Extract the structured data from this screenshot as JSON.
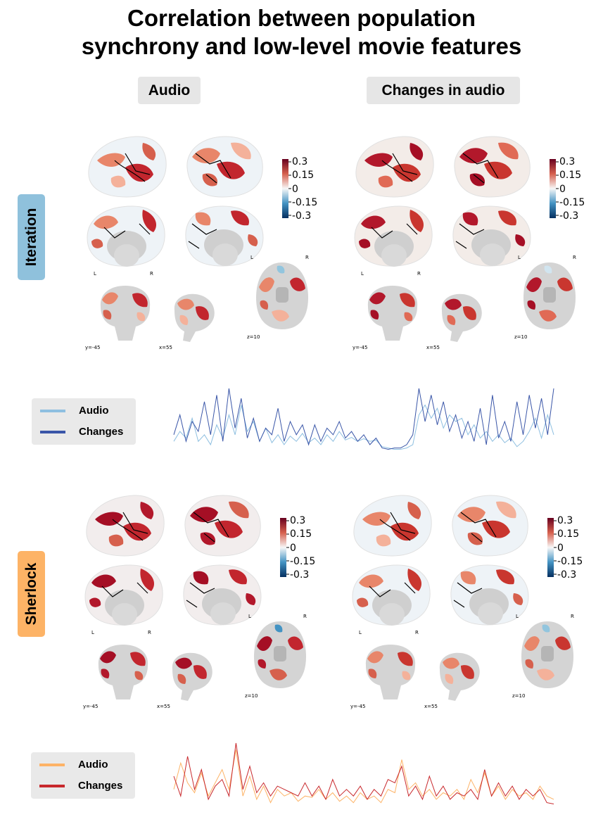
{
  "title_line1": "Correlation between population",
  "title_line2": "synchrony and low-level movie features",
  "columns": [
    "Audio",
    "Changes in audio"
  ],
  "rows": [
    {
      "label": "Iteration",
      "color": "#8fc1dc"
    },
    {
      "label": "Sherlock",
      "color": "#fdb366"
    }
  ],
  "colorbar": {
    "ticks": [
      "0.3",
      "0.15",
      "0",
      "-0.15",
      "-0.3"
    ],
    "colormap": "RdBu_r",
    "range": [
      -0.3,
      0.3
    ]
  },
  "slice_labels": {
    "L": "L",
    "R": "R",
    "coronal": "y=-45",
    "sagittal": "x=55",
    "axial": "z=10"
  },
  "legends": {
    "iteration": [
      {
        "label": "Audio",
        "color": "#8ebfe0"
      },
      {
        "label": "Changes",
        "color": "#3a56a8"
      }
    ],
    "sherlock": [
      {
        "label": "Audio",
        "color": "#fdb366"
      },
      {
        "label": "Changes",
        "color": "#c8282c"
      }
    ]
  },
  "chart_data": [
    {
      "type": "line",
      "series": [
        {
          "name": "Audio",
          "color": "#8ebfe0",
          "values": [
            0.2,
            0.35,
            0.25,
            0.55,
            0.2,
            0.3,
            0.15,
            0.45,
            0.25,
            0.6,
            0.3,
            0.75,
            0.35,
            0.5,
            0.2,
            0.4,
            0.18,
            0.3,
            0.15,
            0.28,
            0.2,
            0.32,
            0.18,
            0.25,
            0.15,
            0.3,
            0.2,
            0.35,
            0.22,
            0.26,
            0.2,
            0.24,
            0.2,
            0.22,
            0.12,
            0.1,
            0.08,
            0.08,
            0.1,
            0.15,
            0.6,
            0.75,
            0.55,
            0.7,
            0.4,
            0.6,
            0.5,
            0.55,
            0.3,
            0.45,
            0.25,
            0.35,
            0.2,
            0.3,
            0.18,
            0.25,
            0.12,
            0.2,
            0.35,
            0.55,
            0.25,
            0.6,
            0.3
          ]
        },
        {
          "name": "Changes",
          "color": "#3a56a8",
          "values": [
            0.3,
            0.6,
            0.2,
            0.5,
            0.35,
            0.8,
            0.3,
            0.9,
            0.2,
            1.0,
            0.4,
            0.85,
            0.25,
            0.55,
            0.2,
            0.4,
            0.3,
            0.7,
            0.2,
            0.5,
            0.3,
            0.45,
            0.15,
            0.45,
            0.2,
            0.4,
            0.3,
            0.5,
            0.25,
            0.35,
            0.2,
            0.3,
            0.15,
            0.25,
            0.1,
            0.08,
            0.1,
            0.1,
            0.15,
            0.3,
            1.0,
            0.5,
            0.9,
            0.45,
            0.8,
            0.35,
            0.6,
            0.25,
            0.5,
            0.2,
            0.7,
            0.15,
            0.9,
            0.25,
            0.5,
            0.2,
            0.8,
            0.3,
            0.9,
            0.4,
            0.85,
            0.3,
            1.0
          ]
        }
      ]
    },
    {
      "type": "line",
      "series": [
        {
          "name": "Audio",
          "color": "#fdb366",
          "values": [
            0.3,
            0.7,
            0.4,
            0.25,
            0.55,
            0.2,
            0.4,
            0.6,
            0.3,
            0.9,
            0.2,
            0.5,
            0.15,
            0.35,
            0.1,
            0.3,
            0.2,
            0.25,
            0.12,
            0.2,
            0.18,
            0.3,
            0.15,
            0.25,
            0.12,
            0.2,
            0.1,
            0.25,
            0.15,
            0.2,
            0.1,
            0.3,
            0.25,
            0.75,
            0.3,
            0.4,
            0.2,
            0.3,
            0.15,
            0.25,
            0.2,
            0.3,
            0.15,
            0.45,
            0.25,
            0.55,
            0.2,
            0.35,
            0.15,
            0.3,
            0.2,
            0.25,
            0.15,
            0.35,
            0.2,
            0.15
          ]
        },
        {
          "name": "Changes",
          "color": "#c8282c",
          "values": [
            0.5,
            0.2,
            0.8,
            0.3,
            0.6,
            0.15,
            0.35,
            0.45,
            0.2,
            1.0,
            0.3,
            0.65,
            0.25,
            0.4,
            0.2,
            0.35,
            0.3,
            0.25,
            0.2,
            0.4,
            0.2,
            0.35,
            0.15,
            0.45,
            0.2,
            0.3,
            0.2,
            0.35,
            0.15,
            0.3,
            0.2,
            0.45,
            0.4,
            0.65,
            0.2,
            0.35,
            0.15,
            0.5,
            0.2,
            0.35,
            0.15,
            0.25,
            0.2,
            0.3,
            0.15,
            0.6,
            0.2,
            0.4,
            0.2,
            0.35,
            0.15,
            0.3,
            0.2,
            0.3,
            0.1,
            0.08
          ]
        }
      ]
    }
  ]
}
